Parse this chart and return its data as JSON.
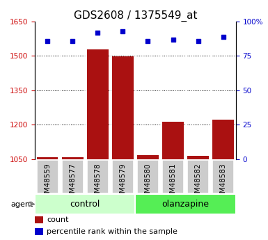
{
  "title": "GDS2608 / 1375549_at",
  "categories": [
    "GSM48559",
    "GSM48577",
    "GSM48578",
    "GSM48579",
    "GSM48580",
    "GSM48581",
    "GSM48582",
    "GSM48583"
  ],
  "bar_values": [
    1057,
    1057,
    1530,
    1497,
    1068,
    1212,
    1063,
    1223
  ],
  "percentile_values": [
    86,
    86,
    92,
    93,
    86,
    87,
    86,
    89
  ],
  "groups": [
    {
      "label": "control",
      "start": 0,
      "end": 4,
      "color": "#ccffcc"
    },
    {
      "label": "olanzapine",
      "start": 4,
      "end": 8,
      "color": "#55ee55"
    }
  ],
  "bar_color": "#aa1111",
  "scatter_color": "#0000cc",
  "left_ylim": [
    1050,
    1650
  ],
  "left_yticks": [
    1050,
    1200,
    1350,
    1500,
    1650
  ],
  "right_ylim": [
    0,
    100
  ],
  "right_yticks": [
    0,
    25,
    50,
    75,
    100
  ],
  "right_yticklabels": [
    "0",
    "25",
    "50",
    "75",
    "100%"
  ],
  "left_tick_color": "#cc0000",
  "right_tick_color": "#0000cc",
  "background_color": "#ffffff",
  "plot_bg_color": "#ffffff",
  "agent_label": "agent",
  "legend_count_label": "count",
  "legend_percentile_label": "percentile rank within the sample",
  "title_fontsize": 11,
  "tick_fontsize": 7.5,
  "label_fontsize": 8,
  "group_label_fontsize": 9,
  "x_tick_bg_color": "#cccccc",
  "gridline_yticks": [
    1200,
    1350,
    1500
  ],
  "bar_bottom": 1050
}
